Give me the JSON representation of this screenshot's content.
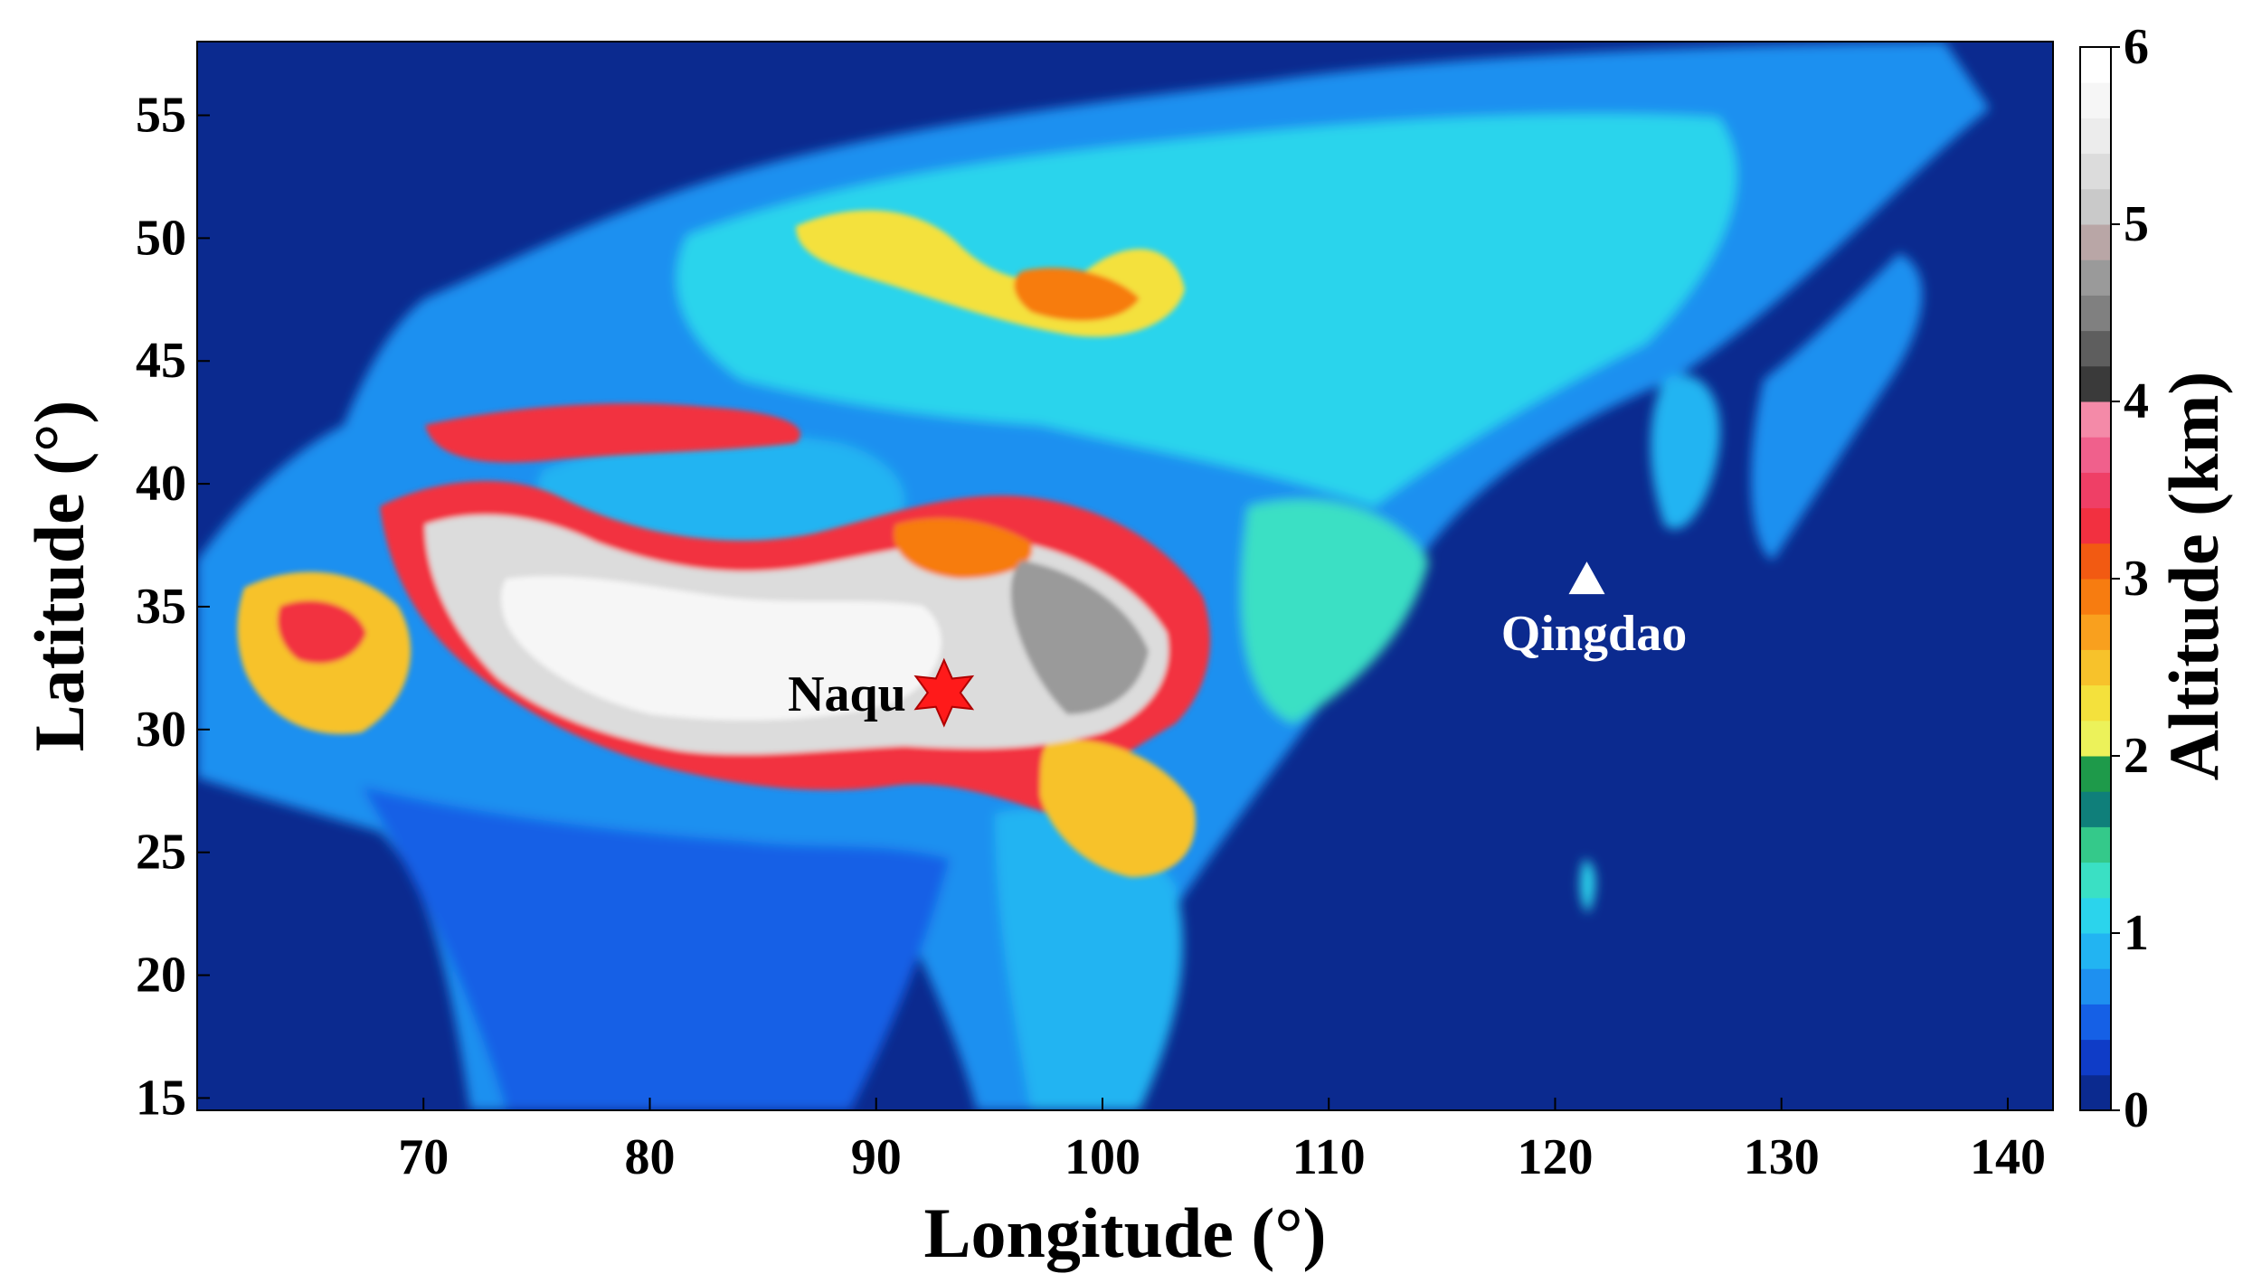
{
  "chart_data": {
    "type": "heatmap",
    "title": "",
    "xlabel": "Longitude (°)",
    "ylabel": "Latitude (°)",
    "xlim": [
      60,
      142
    ],
    "ylim": [
      14.5,
      58
    ],
    "x_ticks": [
      "70",
      "80",
      "90",
      "100",
      "110",
      "120",
      "130",
      "140"
    ],
    "y_ticks": [
      "15",
      "20",
      "25",
      "30",
      "35",
      "40",
      "45",
      "50",
      "55"
    ],
    "colorbar": {
      "label": "Altitude (km)",
      "range": [
        0,
        6
      ],
      "ticks": [
        "0",
        "1",
        "2",
        "3",
        "4",
        "5",
        "6"
      ],
      "colors": [
        "#0b2a8f",
        "#0f3cc7",
        "#1560e6",
        "#1e90f0",
        "#22b4f2",
        "#2bd4ec",
        "#3ae0c4",
        "#34c98a",
        "#0f7f7a",
        "#1e9a4a",
        "#ecf25a",
        "#f4e13c",
        "#f7c22b",
        "#f9a01e",
        "#f77c10",
        "#f25a12",
        "#f23040",
        "#ef3f66",
        "#f0608c",
        "#f48aa8",
        "#3a3a3a",
        "#5e5e5e",
        "#808080",
        "#9a9a9a",
        "#b9a6a6",
        "#c9c9c9",
        "#dcdcdc",
        "#ececec",
        "#f6f6f6",
        "#ffffff"
      ]
    },
    "points": [
      {
        "name": "Naqu",
        "lon": 93,
        "lat": 31.5,
        "marker": "star",
        "color": "#ff1a1a"
      },
      {
        "name": "Qingdao",
        "lon": 121.4,
        "lat": 36.1,
        "marker": "triangle",
        "color": "#ffffff"
      }
    ]
  },
  "colors": {
    "ocean": "#0b2a8f",
    "lowland": "#1b66e0",
    "plateau": "#e8e8e8",
    "label_dark": "#000000",
    "label_light": "#ffffff"
  }
}
